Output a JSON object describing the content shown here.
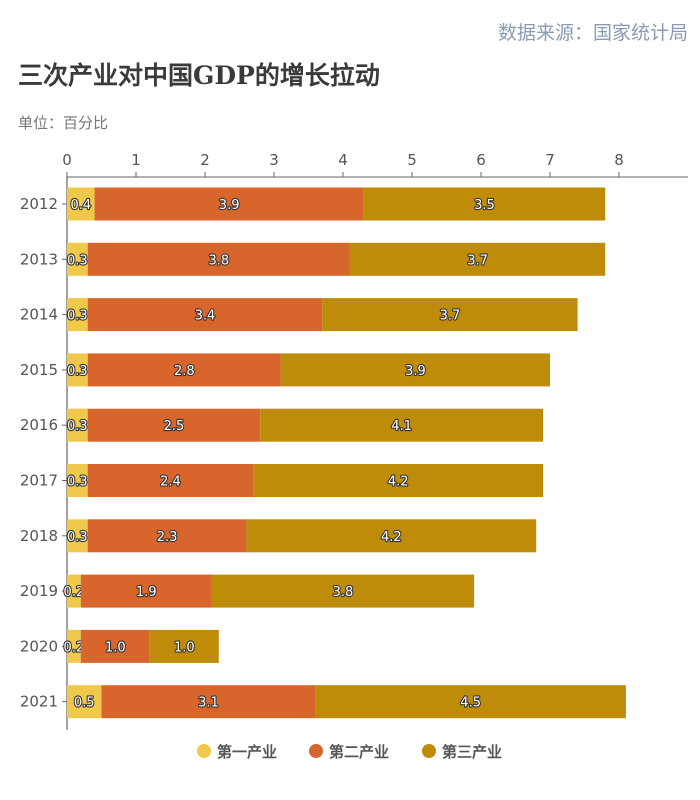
{
  "source": "数据来源：国家统计局",
  "chart_data": {
    "type": "bar",
    "orientation": "horizontal",
    "stacked": true,
    "title": "三次产业对中国GDP的增长拉动",
    "unit": "单位：百分比",
    "categories": [
      "2012",
      "2013",
      "2014",
      "2015",
      "2016",
      "2017",
      "2018",
      "2019",
      "2020",
      "2021"
    ],
    "xlim": [
      0,
      8
    ],
    "xticks": [
      0,
      1,
      2,
      3,
      4,
      5,
      6,
      7,
      8
    ],
    "grid": false,
    "legend_position": "bottom",
    "series": [
      {
        "name": "第一产业",
        "color": "#f0c94a",
        "values": [
          0.4,
          0.3,
          0.3,
          0.3,
          0.3,
          0.3,
          0.3,
          0.2,
          0.2,
          0.5
        ]
      },
      {
        "name": "第二产业",
        "color": "#d8652c",
        "values": [
          3.9,
          3.8,
          3.4,
          2.8,
          2.5,
          2.4,
          2.3,
          1.9,
          1.0,
          3.1
        ]
      },
      {
        "name": "第三产业",
        "color": "#bf8c0a",
        "values": [
          3.5,
          3.7,
          3.7,
          3.9,
          4.1,
          4.2,
          4.2,
          3.8,
          1.0,
          4.5
        ]
      }
    ]
  }
}
